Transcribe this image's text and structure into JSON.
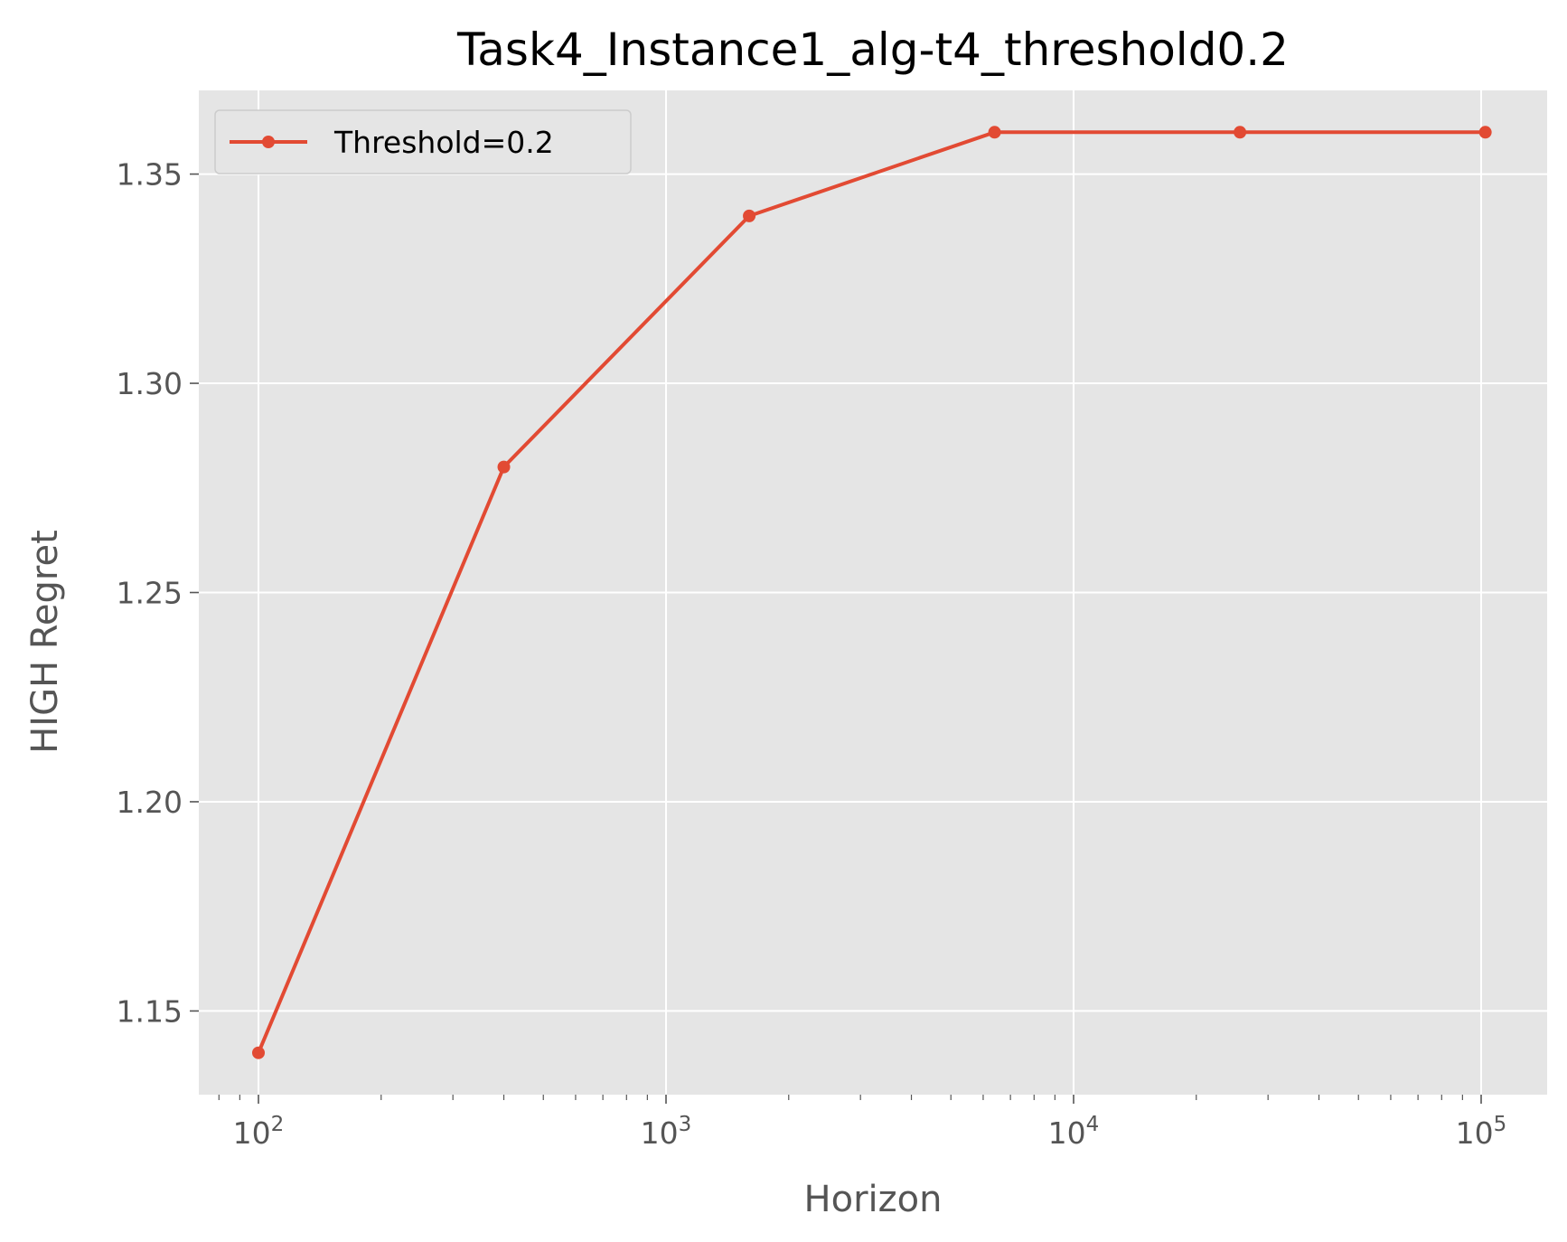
{
  "chart_data": {
    "type": "line",
    "title": "Task4_Instance1_alg-t4_threshold0.2",
    "xlabel": "Horizon",
    "ylabel": "HIGH Regret",
    "xscale": "log",
    "xlim": [
      70,
      135000
    ],
    "ylim": [
      1.13,
      1.37
    ],
    "grid": true,
    "legend_position": "top-left",
    "x_ticks": [
      {
        "value": 100,
        "base": "10",
        "exp": "2"
      },
      {
        "value": 1000,
        "base": "10",
        "exp": "3"
      },
      {
        "value": 10000,
        "base": "10",
        "exp": "4"
      },
      {
        "value": 100000,
        "base": "10",
        "exp": "5"
      }
    ],
    "y_ticks": [
      {
        "value": 1.15,
        "label": "1.15"
      },
      {
        "value": 1.2,
        "label": "1.20"
      },
      {
        "value": 1.25,
        "label": "1.25"
      },
      {
        "value": 1.3,
        "label": "1.30"
      },
      {
        "value": 1.35,
        "label": "1.35"
      }
    ],
    "series": [
      {
        "name": "Threshold=0.2",
        "color": "#E24A33",
        "x": [
          100,
          400,
          1600,
          6400,
          25600,
          102400
        ],
        "values": [
          1.14,
          1.28,
          1.34,
          1.36,
          1.36,
          1.36
        ]
      }
    ]
  },
  "colors": {
    "plot_background": "#E5E5E5",
    "grid": "#FFFFFF",
    "tick": "#555555"
  }
}
